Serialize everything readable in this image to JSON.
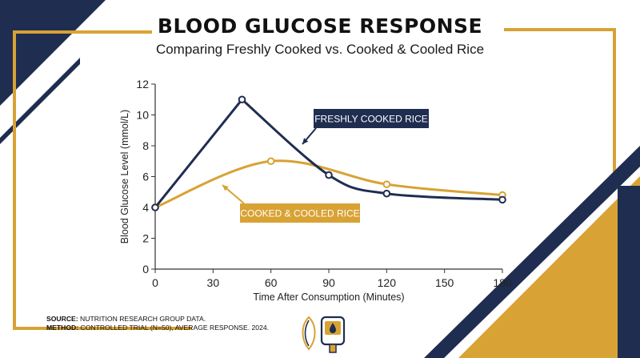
{
  "colors": {
    "navy": "#1f2d50",
    "gold": "#d8a234",
    "background": "#ffffff",
    "text": "#111111"
  },
  "header": {
    "title": "BLOOD GLUCOSE RESPONSE",
    "subtitle": "Comparing Freshly Cooked vs. Cooked & Cooled Rice"
  },
  "footer": {
    "source_label": "SOURCE:",
    "source_text": "NUTRITION RESEARCH GROUP DATA.",
    "method_label": "METHOD:",
    "method_text": "CONTROLLED TRIAL (N=50), AVERAGE RESPONSE. 2024."
  },
  "icons": [
    "rice-grain-icon",
    "glucose-meter-icon"
  ],
  "chart_data": {
    "type": "line",
    "title": "BLOOD GLUCOSE RESPONSE",
    "subtitle": "Comparing Freshly Cooked vs. Cooked & Cooled Rice",
    "xlabel": "Time After Consumption (Minutes)",
    "ylabel": "Blood Glucose Level (mmol/L)",
    "xlim": [
      0,
      180
    ],
    "ylim": [
      0,
      12
    ],
    "xticks": [
      0,
      30,
      60,
      90,
      120,
      150,
      180
    ],
    "yticks": [
      0,
      2,
      4,
      6,
      8,
      10,
      12
    ],
    "grid": false,
    "legend": "inline labels",
    "series": [
      {
        "name": "FRESHLY COOKED RICE",
        "color": "#1f2d50",
        "x": [
          0,
          45,
          90,
          120,
          180
        ],
        "y": [
          4.0,
          11.0,
          6.1,
          4.9,
          4.5
        ]
      },
      {
        "name": "COOKED & COOLED RICE",
        "color": "#d8a234",
        "x": [
          0,
          60,
          120,
          180
        ],
        "y": [
          4.0,
          7.0,
          5.5,
          4.8
        ]
      }
    ]
  }
}
